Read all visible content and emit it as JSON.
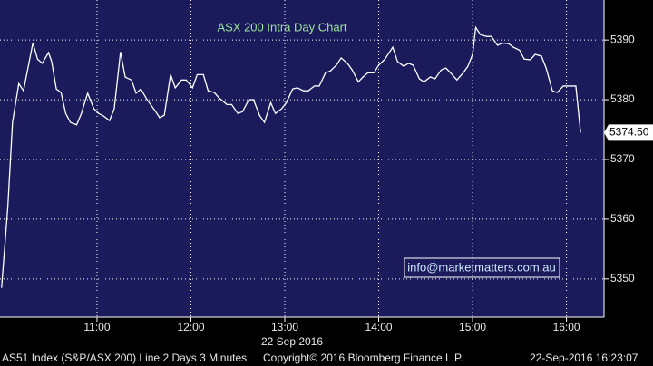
{
  "chart_data": {
    "type": "line",
    "title": "ASX 200 Intra Day Chart",
    "xlabel": "22 Sep 2016",
    "footer": [
      "AS51 Index (S&P/ASX 200) Line 2 Days 3 Minutes",
      "Copyright© 2016 Bloomberg Finance L.P.",
      "22-Sep-2016 16:23:07"
    ],
    "annotation": "info@marketmatters.com.au",
    "last_price": {
      "value": 5374.5,
      "label": "5374.50"
    },
    "x": [
      599,
      603,
      606,
      610,
      613,
      619,
      622,
      625,
      629,
      631,
      634,
      637,
      640,
      643,
      647,
      650,
      654,
      658,
      661,
      664,
      668,
      671,
      675,
      678,
      682,
      685,
      688,
      692,
      697,
      700,
      703,
      707,
      710,
      714,
      717,
      721,
      724,
      728,
      731,
      735,
      738,
      743,
      746,
      750,
      753,
      757,
      760,
      764,
      767,
      771,
      774,
      778,
      781,
      785,
      788,
      792,
      795,
      799,
      802,
      806,
      809,
      813,
      816,
      820,
      823,
      827,
      830,
      833,
      837,
      840,
      844,
      849,
      852,
      856,
      859,
      862,
      866,
      869,
      873,
      876,
      880,
      883,
      887,
      890,
      894,
      897,
      900,
      902,
      905,
      909,
      912,
      916,
      919,
      923,
      926,
      930,
      933,
      937,
      940,
      944,
      947,
      951,
      954,
      958,
      961,
      966,
      969
    ],
    "series": [
      {
        "name": "AS51 Index",
        "color": "#ffffff",
        "values": [
          5348.5,
          5362.1,
          5376.2,
          5382.7,
          5381.5,
          5389.5,
          5386.8,
          5386.1,
          5387.9,
          5386.4,
          5381.8,
          5381.2,
          5377.7,
          5376.2,
          5375.8,
          5377.7,
          5381.1,
          5378.5,
          5377.7,
          5377.3,
          5376.5,
          5378.5,
          5388.0,
          5383.8,
          5383.3,
          5381.1,
          5381.8,
          5380.0,
          5378.2,
          5377.0,
          5377.4,
          5384.2,
          5382.0,
          5383.3,
          5383.3,
          5382.0,
          5384.2,
          5384.2,
          5381.5,
          5381.2,
          5380.3,
          5379.2,
          5379.2,
          5377.7,
          5378.0,
          5380.0,
          5380.0,
          5377.3,
          5376.2,
          5379.5,
          5377.7,
          5378.5,
          5379.5,
          5381.8,
          5382.0,
          5381.5,
          5381.5,
          5382.3,
          5382.3,
          5384.5,
          5384.8,
          5385.8,
          5387.0,
          5386.1,
          5385.0,
          5383.0,
          5383.8,
          5384.5,
          5384.5,
          5385.8,
          5386.8,
          5388.8,
          5386.4,
          5385.6,
          5386.1,
          5385.8,
          5383.5,
          5383.0,
          5383.8,
          5383.5,
          5385.0,
          5385.3,
          5384.2,
          5383.3,
          5384.5,
          5385.6,
          5387.6,
          5392.1,
          5390.9,
          5390.6,
          5390.6,
          5389.1,
          5389.5,
          5389.4,
          5388.8,
          5388.3,
          5386.8,
          5386.7,
          5387.6,
          5387.3,
          5385.3,
          5381.5,
          5381.2,
          5382.3,
          5382.3,
          5382.3,
          5374.5
        ]
      }
    ],
    "xlim": [
      598,
      984
    ],
    "xticks": [
      {
        "value": 660,
        "label": "11:00"
      },
      {
        "value": 720,
        "label": "12:00"
      },
      {
        "value": 780,
        "label": "13:00"
      },
      {
        "value": 840,
        "label": "14:00"
      },
      {
        "value": 900,
        "label": "15:00"
      },
      {
        "value": 960,
        "label": "16:00"
      }
    ],
    "ylim": [
      5343.6,
      5396.7
    ],
    "yticks": [
      5350,
      5360,
      5370,
      5380,
      5390
    ],
    "grid": true,
    "background": "#1b1b5c"
  }
}
